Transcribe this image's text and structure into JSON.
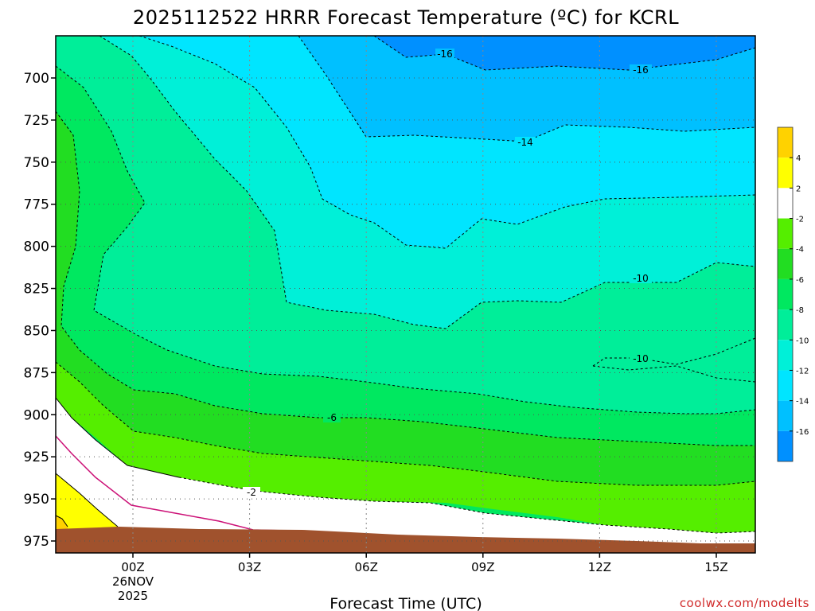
{
  "chart_data": {
    "type": "contour",
    "title": "2025112522 HRRR Forecast Temperature (ºC) for KCRL",
    "xlabel": "Forecast Time (UTC)",
    "ylabel": "",
    "x_ticks": [
      "00Z",
      "03Z",
      "06Z",
      "09Z",
      "12Z",
      "15Z"
    ],
    "x_tick_date": [
      "26NOV",
      "2025"
    ],
    "y_ticks": [
      700,
      725,
      750,
      775,
      800,
      825,
      850,
      875,
      900,
      925,
      950,
      975
    ],
    "contour_labels": [
      "-16",
      "-16",
      "-14",
      "-10",
      "-10",
      "-6",
      "-2"
    ],
    "colorbar": {
      "labels": [
        "4",
        "2",
        "-2",
        "-4",
        "-6",
        "-8",
        "-10",
        "-12",
        "-14",
        "-16"
      ],
      "colors": [
        "#ffd200",
        "#ffff00",
        "#ffffff",
        "#55ee00",
        "#22dd22",
        "#00e860",
        "#00ee99",
        "#00f0d8",
        "#00e5ff",
        "#00c0ff",
        "#0090ff"
      ]
    },
    "grid": true
  },
  "credit": "coolwx.com/modelts",
  "colors": {
    "warm_orange": "#ffd200",
    "yellow": "#ffff00",
    "white_band": "#ffffff",
    "green_m4": "#55ee00",
    "green_m6": "#22dd22",
    "green_m8": "#00e860",
    "teal_m10": "#00ee99",
    "teal_m12": "#00f0d8",
    "cyan_m14": "#00e5ff",
    "sky_m16": "#00c0ff",
    "blue_coldest": "#0090ff",
    "terrain": "#a0522d",
    "zero_line": "#cc1177"
  }
}
